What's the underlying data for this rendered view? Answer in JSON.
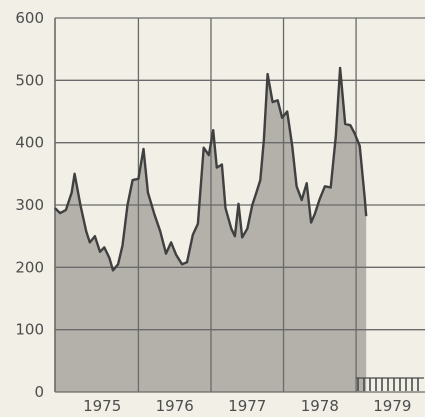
{
  "chart_data": {
    "type": "area",
    "title": "",
    "xlabel": "",
    "ylabel": "",
    "ylim": [
      0,
      600
    ],
    "xlim": [
      1974.85,
      1979.95
    ],
    "y_ticks": [
      0,
      100,
      200,
      300,
      400,
      500,
      600
    ],
    "x_ticks": [
      1975.5,
      1976.5,
      1977.5,
      1978.5,
      1979.5
    ],
    "x_tick_labels": [
      "1975",
      "1976",
      "1977",
      "1978",
      "1979"
    ],
    "y_tick_labels": [
      "0",
      "100",
      "200",
      "300",
      "400",
      "500",
      "600"
    ],
    "grid": true,
    "legend": "none",
    "colors": {
      "background": "#f1efe6",
      "area_fill": "#b3b1aa",
      "line": "#404040",
      "grid": "#6a6a6a",
      "axis_text": "#4e4e4e"
    },
    "series": [
      {
        "points": [
          [
            1974.85,
            295
          ],
          [
            1974.92,
            287
          ],
          [
            1975.0,
            292
          ],
          [
            1975.08,
            320
          ],
          [
            1975.12,
            350
          ],
          [
            1975.2,
            300
          ],
          [
            1975.28,
            258
          ],
          [
            1975.33,
            240
          ],
          [
            1975.4,
            250
          ],
          [
            1975.47,
            225
          ],
          [
            1975.53,
            232
          ],
          [
            1975.6,
            215
          ],
          [
            1975.65,
            195
          ],
          [
            1975.72,
            205
          ],
          [
            1975.78,
            235
          ],
          [
            1975.85,
            300
          ],
          [
            1975.92,
            340
          ],
          [
            1976.0,
            342
          ],
          [
            1976.07,
            390
          ],
          [
            1976.13,
            320
          ],
          [
            1976.22,
            285
          ],
          [
            1976.3,
            258
          ],
          [
            1976.38,
            222
          ],
          [
            1976.45,
            240
          ],
          [
            1976.52,
            220
          ],
          [
            1976.6,
            205
          ],
          [
            1976.67,
            208
          ],
          [
            1976.75,
            252
          ],
          [
            1976.82,
            270
          ],
          [
            1976.9,
            392
          ],
          [
            1976.97,
            380
          ],
          [
            1977.03,
            420
          ],
          [
            1977.08,
            360
          ],
          [
            1977.15,
            365
          ],
          [
            1977.2,
            295
          ],
          [
            1977.28,
            262
          ],
          [
            1977.33,
            250
          ],
          [
            1977.38,
            302
          ],
          [
            1977.43,
            248
          ],
          [
            1977.5,
            262
          ],
          [
            1977.57,
            300
          ],
          [
            1977.62,
            318
          ],
          [
            1977.68,
            340
          ],
          [
            1977.73,
            405
          ],
          [
            1977.78,
            510
          ],
          [
            1977.85,
            465
          ],
          [
            1977.92,
            468
          ],
          [
            1977.98,
            440
          ],
          [
            1978.05,
            450
          ],
          [
            1978.12,
            395
          ],
          [
            1978.18,
            330
          ],
          [
            1978.25,
            308
          ],
          [
            1978.32,
            335
          ],
          [
            1978.38,
            272
          ],
          [
            1978.43,
            285
          ],
          [
            1978.5,
            310
          ],
          [
            1978.57,
            330
          ],
          [
            1978.65,
            328
          ],
          [
            1978.72,
            410
          ],
          [
            1978.78,
            520
          ],
          [
            1978.85,
            430
          ],
          [
            1978.92,
            428
          ],
          [
            1978.98,
            415
          ],
          [
            1979.05,
            395
          ],
          [
            1979.12,
            310
          ],
          [
            1979.14,
            282
          ]
        ]
      }
    ]
  }
}
